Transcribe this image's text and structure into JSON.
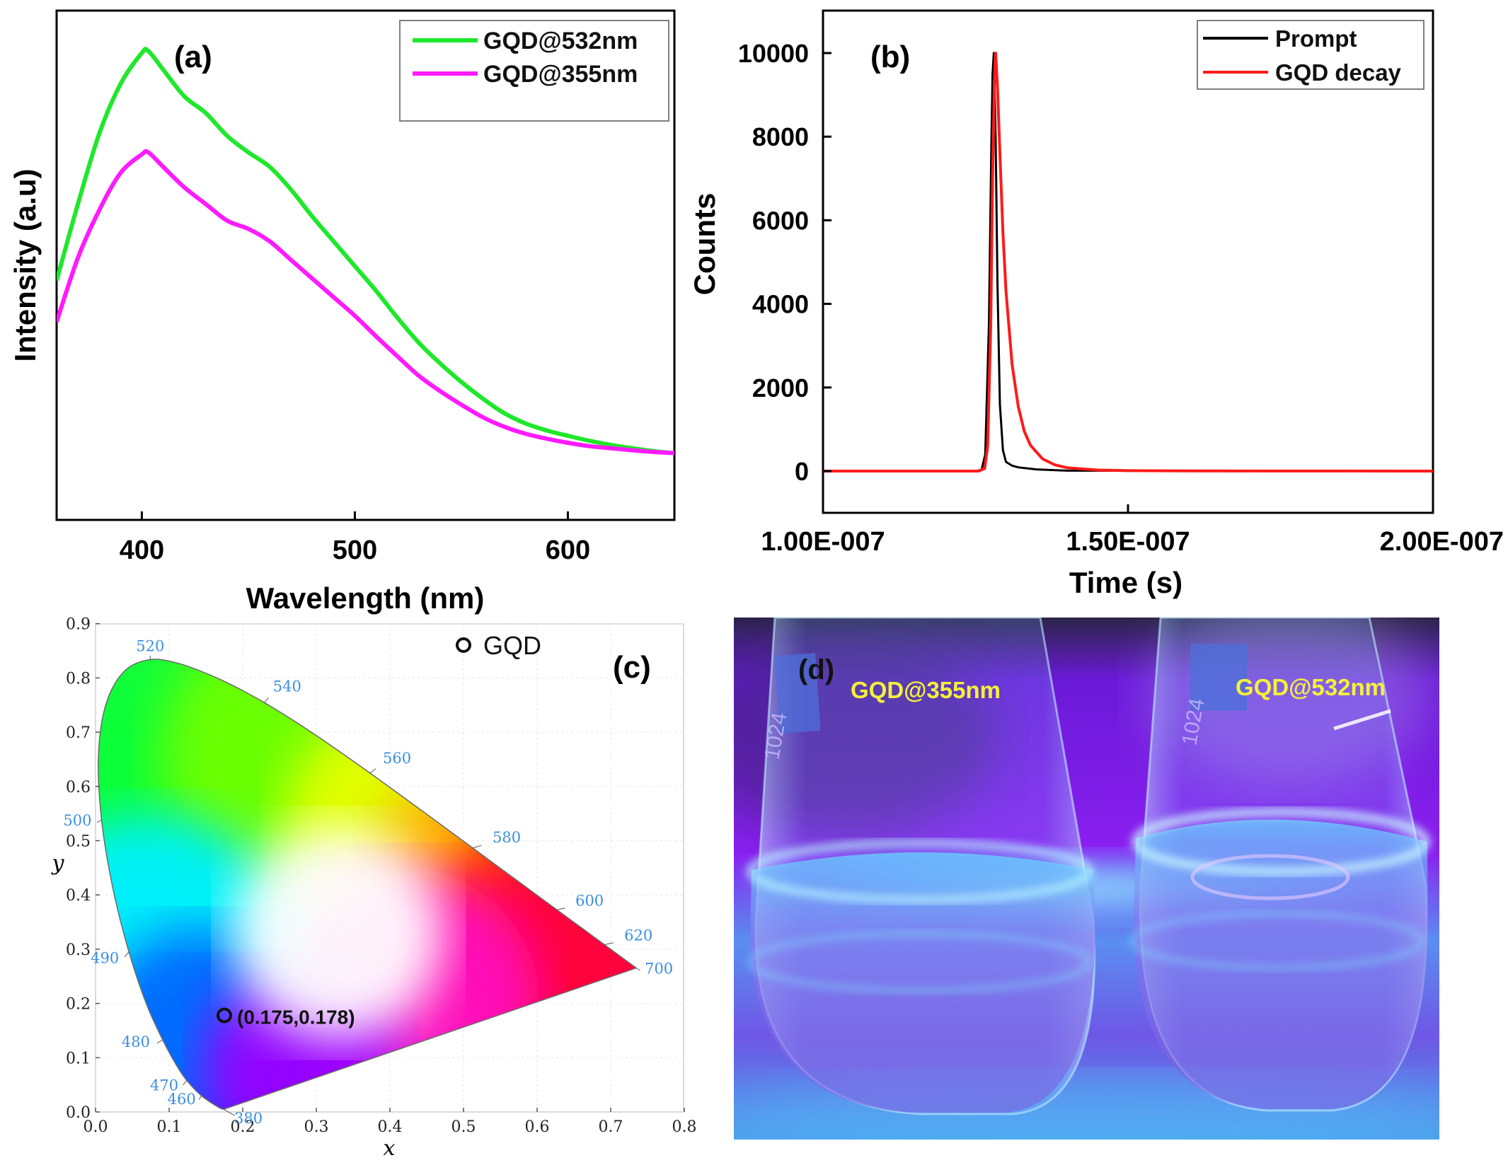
{
  "chart_data": [
    {
      "panel": "(a)",
      "type": "line",
      "xlabel": "Wavelength (nm)",
      "ylabel": "Intensity (a.u)",
      "xlim": [
        360,
        650
      ],
      "ylim": [
        0,
        1.05
      ],
      "xticks": [
        400,
        500,
        600
      ],
      "yticks": [],
      "legend_position": "top-right",
      "series": [
        {
          "name": "GQD@532nm",
          "color": "#1ee82a",
          "x": [
            360,
            370,
            380,
            390,
            400,
            403,
            410,
            420,
            430,
            440,
            450,
            460,
            470,
            480,
            490,
            500,
            510,
            520,
            530,
            540,
            550,
            560,
            570,
            580,
            590,
            600,
            610,
            620,
            630,
            640,
            650
          ],
          "y": [
            0.445,
            0.63,
            0.8,
            0.92,
            0.995,
            1.0,
            0.955,
            0.89,
            0.85,
            0.795,
            0.755,
            0.72,
            0.665,
            0.6,
            0.54,
            0.48,
            0.42,
            0.355,
            0.295,
            0.245,
            0.2,
            0.16,
            0.125,
            0.1,
            0.083,
            0.07,
            0.058,
            0.048,
            0.04,
            0.033,
            0.028
          ]
        },
        {
          "name": "GQD@355nm",
          "color": "#ff1aff",
          "x": [
            360,
            370,
            380,
            390,
            400,
            403,
            410,
            420,
            430,
            440,
            450,
            460,
            470,
            480,
            490,
            500,
            510,
            520,
            530,
            540,
            550,
            560,
            570,
            580,
            590,
            600,
            610,
            620,
            630,
            640,
            650
          ],
          "y": [
            0.345,
            0.5,
            0.615,
            0.705,
            0.75,
            0.755,
            0.72,
            0.67,
            0.63,
            0.59,
            0.57,
            0.54,
            0.495,
            0.45,
            0.405,
            0.36,
            0.31,
            0.262,
            0.215,
            0.178,
            0.145,
            0.115,
            0.092,
            0.075,
            0.063,
            0.053,
            0.045,
            0.04,
            0.035,
            0.031,
            0.028
          ]
        }
      ]
    },
    {
      "panel": "(b)",
      "type": "line",
      "xlabel": "Time (s)",
      "ylabel": "Counts",
      "xlim": [
        1e-07,
        2e-07
      ],
      "ylim": [
        -1000,
        10800
      ],
      "xtick_labels": [
        "1.00E-007",
        "1.50E-007",
        "2.00E-007"
      ],
      "xticks": [
        1e-07,
        1.5e-07,
        2e-07
      ],
      "yticks": [
        0,
        2000,
        4000,
        6000,
        8000,
        10000
      ],
      "ytick_labels": [
        "0",
        "2000",
        "4000",
        "6000",
        "8000",
        "10000"
      ],
      "legend_position": "top-right",
      "series": [
        {
          "name": "Prompt",
          "color": "#000000",
          "x": [
            1e-07,
            1.25e-07,
            1.26e-07,
            1.266e-07,
            1.272e-07,
            1.276e-07,
            1.278e-07,
            1.28e-07,
            1.283e-07,
            1.286e-07,
            1.29e-07,
            1.295e-07,
            1.3e-07,
            1.31e-07,
            1.32e-07,
            1.35e-07,
            1.4e-07,
            2e-07
          ],
          "y": [
            0,
            0,
            30,
            400,
            3500,
            7800,
            9500,
            10000,
            8000,
            4500,
            1600,
            500,
            220,
            130,
            90,
            40,
            10,
            0
          ]
        },
        {
          "name": "GQD decay",
          "color": "#ff1a1a",
          "x": [
            1e-07,
            1.255e-07,
            1.265e-07,
            1.27e-07,
            1.275e-07,
            1.278e-07,
            1.281e-07,
            1.283e-07,
            1.286e-07,
            1.29e-07,
            1.295e-07,
            1.3e-07,
            1.31e-07,
            1.32e-07,
            1.33e-07,
            1.34e-07,
            1.36e-07,
            1.38e-07,
            1.4e-07,
            1.45e-07,
            1.5e-07,
            1.6e-07,
            2e-07
          ],
          "y": [
            0,
            0,
            60,
            600,
            3500,
            7000,
            9300,
            10000,
            9200,
            7600,
            5700,
            4300,
            2550,
            1550,
            950,
            620,
            290,
            150,
            80,
            25,
            10,
            4,
            0
          ]
        }
      ]
    },
    {
      "panel": "(c)",
      "type": "scatter",
      "xlabel": "x",
      "ylabel": "y",
      "xlim": [
        0.0,
        0.8
      ],
      "ylim": [
        0.0,
        0.9
      ],
      "xticks": [
        0.0,
        0.1,
        0.2,
        0.3,
        0.4,
        0.5,
        0.6,
        0.7,
        0.8
      ],
      "xtick_labels": [
        "0.0",
        "0.1",
        "0.2",
        "0.3",
        "0.4",
        "0.5",
        "0.6",
        "0.7",
        "0.8"
      ],
      "yticks": [
        0.0,
        0.1,
        0.2,
        0.3,
        0.4,
        0.5,
        0.6,
        0.7,
        0.8,
        0.9
      ],
      "ytick_labels": [
        "0.0",
        "0.1",
        "0.2",
        "0.3",
        "0.4",
        "0.5",
        "0.6",
        "0.7",
        "0.8",
        "0.9"
      ],
      "legend_position": "top-right",
      "legend_label": "GQD",
      "points": [
        {
          "name": "GQD",
          "x": 0.175,
          "y": 0.178,
          "label": "(0.175,0.178)"
        }
      ],
      "locus_labels": [
        {
          "nm": "380",
          "x": 0.1741,
          "y": 0.005
        },
        {
          "nm": "460",
          "x": 0.144,
          "y": 0.0297
        },
        {
          "nm": "470",
          "x": 0.1241,
          "y": 0.0578
        },
        {
          "nm": "480",
          "x": 0.0913,
          "y": 0.1327
        },
        {
          "nm": "490",
          "x": 0.0454,
          "y": 0.295
        },
        {
          "nm": "500",
          "x": 0.0082,
          "y": 0.5384
        },
        {
          "nm": "520",
          "x": 0.0743,
          "y": 0.8338
        },
        {
          "nm": "540",
          "x": 0.2296,
          "y": 0.7543
        },
        {
          "nm": "560",
          "x": 0.3731,
          "y": 0.6245
        },
        {
          "nm": "580",
          "x": 0.5125,
          "y": 0.4866
        },
        {
          "nm": "600",
          "x": 0.627,
          "y": 0.3725
        },
        {
          "nm": "620",
          "x": 0.6915,
          "y": 0.3083
        },
        {
          "nm": "700",
          "x": 0.7347,
          "y": 0.2653
        }
      ],
      "locus": [
        [
          0.1741,
          0.005
        ],
        [
          0.1666,
          0.0089
        ],
        [
          0.144,
          0.0297
        ],
        [
          0.1241,
          0.0578
        ],
        [
          0.1096,
          0.0868
        ],
        [
          0.0913,
          0.1327
        ],
        [
          0.0687,
          0.2007
        ],
        [
          0.0454,
          0.295
        ],
        [
          0.0235,
          0.4127
        ],
        [
          0.0082,
          0.5384
        ],
        [
          0.0039,
          0.6548
        ],
        [
          0.0139,
          0.7502
        ],
        [
          0.0389,
          0.812
        ],
        [
          0.0743,
          0.8338
        ],
        [
          0.1142,
          0.8262
        ],
        [
          0.1547,
          0.8059
        ],
        [
          0.1929,
          0.7816
        ],
        [
          0.2296,
          0.7543
        ],
        [
          0.2658,
          0.7243
        ],
        [
          0.3016,
          0.6923
        ],
        [
          0.3373,
          0.6589
        ],
        [
          0.3731,
          0.6245
        ],
        [
          0.4087,
          0.5896
        ],
        [
          0.4441,
          0.5547
        ],
        [
          0.4788,
          0.5202
        ],
        [
          0.5125,
          0.4866
        ],
        [
          0.5448,
          0.4544
        ],
        [
          0.5752,
          0.4242
        ],
        [
          0.6029,
          0.3965
        ],
        [
          0.627,
          0.3725
        ],
        [
          0.6482,
          0.3514
        ],
        [
          0.6658,
          0.334
        ],
        [
          0.6915,
          0.3083
        ],
        [
          0.7079,
          0.292
        ],
        [
          0.7347,
          0.2653
        ]
      ]
    }
  ],
  "panel_a": {
    "tag": "(a)"
  },
  "panel_b": {
    "tag": "(b)"
  },
  "panel_c": {
    "tag": "(c)"
  },
  "panel_d": {
    "tag": "(d)",
    "left_label": "GQD@355nm",
    "right_label": "GQD@532nm",
    "beaker_print_left": "1024",
    "beaker_print_right": "1024"
  },
  "colors": {
    "photo_background": "#8b1ff0",
    "glow": "#4fd2ff",
    "label_yellow": "#f5f03a",
    "locus_label": "#3a8fe0"
  }
}
